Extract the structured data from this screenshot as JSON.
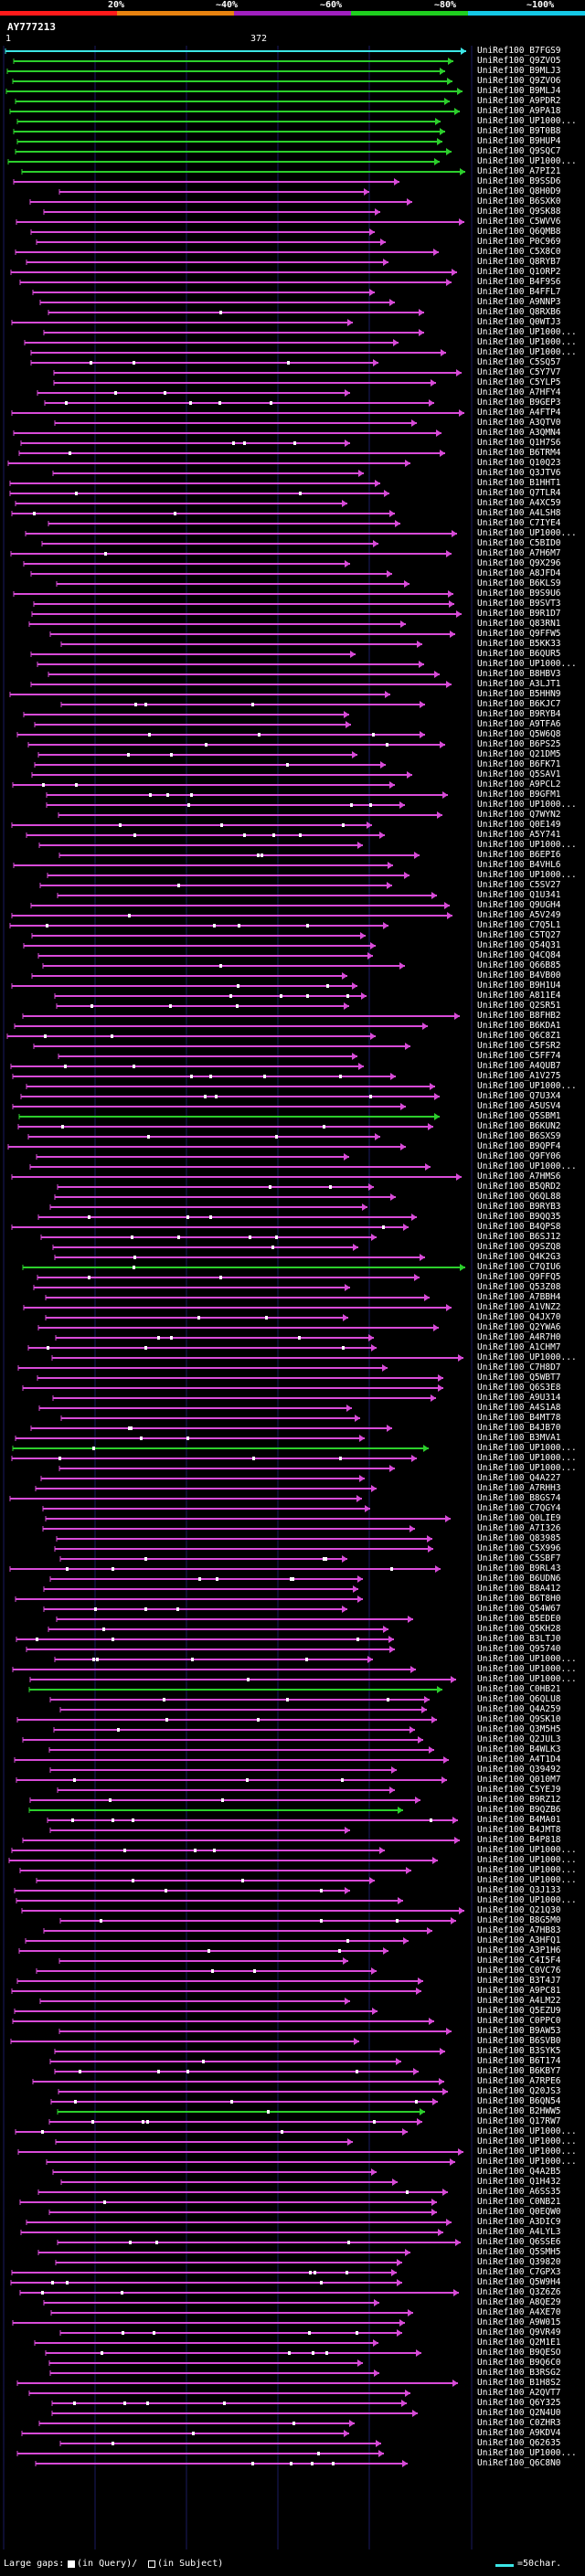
{
  "header": {
    "percent_labels": [
      "20%",
      "~40%",
      "~60%",
      "~80%",
      "~100%"
    ],
    "identity_colors": [
      "#ff1a1a",
      "#e88310",
      "#a020c0",
      "#1fcf1f",
      "#14c8e6"
    ],
    "query_id": "AY777213",
    "query_start": "1",
    "query_end": "372"
  },
  "colors": {
    "magenta": "#d84bd8",
    "green": "#2ccf2c",
    "cyan": "#3ce6e6",
    "gap_query": "#ffffff",
    "gap_subject": "#000000"
  },
  "hits": [
    {
      "label": "UniRef100_B7FGS9",
      "color": "cyan"
    },
    {
      "label": "UniRef100_Q9ZVO5",
      "color": "green"
    },
    {
      "label": "UniRef100_B9MLJ3",
      "color": "green"
    },
    {
      "label": "UniRef100_Q9ZVO6",
      "color": "green"
    },
    {
      "label": "UniRef100_B9MLJ4",
      "color": "green"
    },
    {
      "label": "UniRef100_A9PDR2",
      "color": "green"
    },
    {
      "label": "UniRef100_A9PA18",
      "color": "green"
    },
    {
      "label": "UniRef100_UP1000...",
      "color": "green"
    },
    {
      "label": "UniRef100_B9T0B8",
      "color": "green"
    },
    {
      "label": "UniRef100_B9HUP4",
      "color": "green"
    },
    {
      "label": "UniRef100_Q9SQC7",
      "color": "green"
    },
    {
      "label": "UniRef100_UP1000...",
      "color": "green"
    },
    {
      "label": "UniRef100_A7PI21",
      "color": "green"
    },
    {
      "label": "UniRef100_B9SSD6",
      "color": "magenta"
    },
    {
      "label": "UniRef100_Q8H0D9",
      "color": "magenta"
    },
    {
      "label": "UniRef100_B6SXK0",
      "color": "magenta"
    },
    {
      "label": "UniRef100_Q9SK88",
      "color": "magenta"
    },
    {
      "label": "UniRef100_C5WVV6",
      "color": "magenta"
    },
    {
      "label": "UniRef100_Q6QMB8",
      "color": "magenta"
    },
    {
      "label": "UniRef100_P0C969",
      "color": "magenta"
    },
    {
      "label": "UniRef100_C5X8C0",
      "color": "magenta"
    },
    {
      "label": "UniRef100_Q8RYB7",
      "color": "magenta"
    },
    {
      "label": "UniRef100_Q1ORP2",
      "color": "magenta"
    },
    {
      "label": "UniRef100_B4F9S6",
      "color": "magenta"
    },
    {
      "label": "UniRef100_B4FFL7",
      "color": "magenta"
    },
    {
      "label": "UniRef100_A9NNP3",
      "color": "magenta"
    },
    {
      "label": "UniRef100_Q8RXB6",
      "color": "magenta"
    },
    {
      "label": "UniRef100_Q0WTJ3",
      "color": "magenta"
    },
    {
      "label": "UniRef100_UP1000...",
      "color": "magenta"
    },
    {
      "label": "UniRef100_UP1000...",
      "color": "magenta"
    },
    {
      "label": "UniRef100_UP1000...",
      "color": "magenta"
    },
    {
      "label": "UniRef100_C5SQ57",
      "color": "magenta"
    },
    {
      "label": "UniRef100_C5Y7V7",
      "color": "magenta"
    },
    {
      "label": "UniRef100_C5YLP5",
      "color": "magenta"
    },
    {
      "label": "UniRef100_A7HFY4",
      "color": "magenta"
    },
    {
      "label": "UniRef100_B9GEP3",
      "color": "magenta"
    },
    {
      "label": "UniRef100_A4FTP4",
      "color": "magenta"
    },
    {
      "label": "UniRef100_A3QTV0",
      "color": "magenta"
    },
    {
      "label": "UniRef100_A3QMN4",
      "color": "magenta"
    },
    {
      "label": "UniRef100_Q1H7S6",
      "color": "magenta"
    },
    {
      "label": "UniRef100_B6TRM4",
      "color": "magenta"
    },
    {
      "label": "UniRef100_Q10Q23",
      "color": "magenta"
    },
    {
      "label": "UniRef100_Q3JTV6",
      "color": "magenta"
    },
    {
      "label": "UniRef100_B1HHT1",
      "color": "magenta"
    },
    {
      "label": "UniRef100_Q7TLR4",
      "color": "magenta"
    },
    {
      "label": "UniRef100_A4XC59",
      "color": "magenta"
    },
    {
      "label": "UniRef100_A4LSH8",
      "color": "magenta"
    },
    {
      "label": "UniRef100_C7IYE4",
      "color": "magenta"
    },
    {
      "label": "UniRef100_UP1000...",
      "color": "magenta"
    },
    {
      "label": "UniRef100_C5BID0",
      "color": "magenta"
    },
    {
      "label": "UniRef100_A7H6M7",
      "color": "magenta"
    },
    {
      "label": "UniRef100_Q9X296",
      "color": "magenta"
    },
    {
      "label": "UniRef100_A8JFD4",
      "color": "magenta"
    },
    {
      "label": "UniRef100_B6KLS9",
      "color": "magenta"
    },
    {
      "label": "UniRef100_B9S9U6",
      "color": "magenta"
    },
    {
      "label": "UniRef100_B9SVT3",
      "color": "magenta"
    },
    {
      "label": "UniRef100_B9R1D7",
      "color": "magenta"
    },
    {
      "label": "UniRef100_Q83RN1",
      "color": "magenta"
    },
    {
      "label": "UniRef100_Q9FFW5",
      "color": "magenta"
    },
    {
      "label": "UniRef100_B5KK33",
      "color": "magenta"
    },
    {
      "label": "UniRef100_B6QUR5",
      "color": "magenta"
    },
    {
      "label": "UniRef100_UP1000...",
      "color": "magenta"
    },
    {
      "label": "UniRef100_B8HBV3",
      "color": "magenta"
    },
    {
      "label": "UniRef100_A3LJT1",
      "color": "magenta"
    },
    {
      "label": "UniRef100_B5HHN9",
      "color": "magenta"
    },
    {
      "label": "UniRef100_B6KJC7",
      "color": "magenta"
    },
    {
      "label": "UniRef100_B9RYB4",
      "color": "magenta"
    },
    {
      "label": "UniRef100_A9TFA6",
      "color": "magenta"
    },
    {
      "label": "UniRef100_Q5W6Q8",
      "color": "magenta"
    },
    {
      "label": "UniRef100_B6PS25",
      "color": "magenta"
    },
    {
      "label": "UniRef100_Q21DM5",
      "color": "magenta"
    },
    {
      "label": "UniRef100_B6FK71",
      "color": "magenta"
    },
    {
      "label": "UniRef100_Q5SAV1",
      "color": "magenta"
    },
    {
      "label": "UniRef100_A9PCL2",
      "color": "magenta"
    },
    {
      "label": "UniRef100_B9GFM1",
      "color": "magenta"
    },
    {
      "label": "UniRef100_UP1000...",
      "color": "magenta"
    },
    {
      "label": "UniRef100_Q7WYN2",
      "color": "magenta"
    },
    {
      "label": "UniRef100_Q0E149",
      "color": "magenta"
    },
    {
      "label": "UniRef100_A5Y741",
      "color": "magenta"
    },
    {
      "label": "UniRef100_UP1000...",
      "color": "magenta"
    },
    {
      "label": "UniRef100_B6EPI6",
      "color": "magenta"
    },
    {
      "label": "UniRef100_B4VHL6",
      "color": "magenta"
    },
    {
      "label": "UniRef100_UP1000...",
      "color": "magenta"
    },
    {
      "label": "UniRef100_C5SV27",
      "color": "magenta"
    },
    {
      "label": "UniRef100_Q1U341",
      "color": "magenta"
    },
    {
      "label": "UniRef100_Q9UGH4",
      "color": "magenta"
    },
    {
      "label": "UniRef100_A5V249",
      "color": "magenta"
    },
    {
      "label": "UniRef100_C7Q5L1",
      "color": "magenta"
    },
    {
      "label": "UniRef100_C5TQ27",
      "color": "magenta"
    },
    {
      "label": "UniRef100_Q54Q31",
      "color": "magenta"
    },
    {
      "label": "UniRef100_Q4CQ84",
      "color": "magenta"
    },
    {
      "label": "UniRef100_Q66B85",
      "color": "magenta"
    },
    {
      "label": "UniRef100_B4VB00",
      "color": "magenta"
    },
    {
      "label": "UniRef100_B9H1U4",
      "color": "magenta"
    },
    {
      "label": "UniRef100_A811E4",
      "color": "magenta"
    },
    {
      "label": "UniRef100_Q2SR51",
      "color": "magenta"
    },
    {
      "label": "UniRef100_B8FHB2",
      "color": "magenta"
    },
    {
      "label": "UniRef100_B6KDA1",
      "color": "magenta"
    },
    {
      "label": "UniRef100_Q6C8Z1",
      "color": "magenta"
    },
    {
      "label": "UniRef100_C5FSR2",
      "color": "magenta"
    },
    {
      "label": "UniRef100_C5FF74",
      "color": "magenta"
    },
    {
      "label": "UniRef100_A4QUB7",
      "color": "magenta"
    },
    {
      "label": "UniRef100_A1V275",
      "color": "magenta"
    },
    {
      "label": "UniRef100_UP1000...",
      "color": "magenta"
    },
    {
      "label": "UniRef100_Q7U3X4",
      "color": "magenta"
    },
    {
      "label": "UniRef100_A5USV4",
      "color": "magenta"
    },
    {
      "label": "UniRef100_Q5SBM1",
      "color": "green"
    },
    {
      "label": "UniRef100_B6KUN2",
      "color": "magenta"
    },
    {
      "label": "UniRef100_B6SXS9",
      "color": "magenta"
    },
    {
      "label": "UniRef100_B9QPF4",
      "color": "magenta"
    },
    {
      "label": "UniRef100_Q9FY06",
      "color": "magenta"
    },
    {
      "label": "UniRef100_UP1000...",
      "color": "magenta"
    },
    {
      "label": "UniRef100_A7HMS6",
      "color": "magenta"
    },
    {
      "label": "UniRef100_B5QRD2",
      "color": "magenta"
    },
    {
      "label": "UniRef100_Q6QL88",
      "color": "magenta"
    },
    {
      "label": "UniRef100_B9RYB3",
      "color": "magenta"
    },
    {
      "label": "UniRef100_B9QQ35",
      "color": "magenta"
    },
    {
      "label": "UniRef100_B4QPS8",
      "color": "magenta"
    },
    {
      "label": "UniRef100_B6SJ12",
      "color": "magenta"
    },
    {
      "label": "UniRef100_Q9SZQ8",
      "color": "magenta"
    },
    {
      "label": "UniRef100_Q4K2G3",
      "color": "magenta"
    },
    {
      "label": "UniRef100_C7QIU6",
      "color": "green"
    },
    {
      "label": "UniRef100_Q9FFQ5",
      "color": "magenta"
    },
    {
      "label": "UniRef100_Q53Z08",
      "color": "magenta"
    },
    {
      "label": "UniRef100_A7BBH4",
      "color": "magenta"
    },
    {
      "label": "UniRef100_A1VNZ2",
      "color": "magenta"
    },
    {
      "label": "UniRef100_Q4JX70",
      "color": "magenta"
    },
    {
      "label": "UniRef100_Q2YWA6",
      "color": "magenta"
    },
    {
      "label": "UniRef100_A4R7H0",
      "color": "magenta"
    },
    {
      "label": "UniRef100_A1CHM7",
      "color": "magenta"
    },
    {
      "label": "UniRef100_UP1000...",
      "color": "magenta"
    },
    {
      "label": "UniRef100_C7H8D7",
      "color": "magenta"
    },
    {
      "label": "UniRef100_Q5WBT7",
      "color": "magenta"
    },
    {
      "label": "UniRef100_Q6S3E8",
      "color": "magenta"
    },
    {
      "label": "UniRef100_A9U314",
      "color": "magenta"
    },
    {
      "label": "UniRef100_A4S1A8",
      "color": "magenta"
    },
    {
      "label": "UniRef100_B4MT78",
      "color": "magenta"
    },
    {
      "label": "UniRef100_B4JB70",
      "color": "magenta"
    },
    {
      "label": "UniRef100_B3MVA1",
      "color": "magenta"
    },
    {
      "label": "UniRef100_UP1000...",
      "color": "green"
    },
    {
      "label": "UniRef100_UP1000...",
      "color": "magenta"
    },
    {
      "label": "UniRef100_UP1000...",
      "color": "magenta"
    },
    {
      "label": "UniRef100_Q4A227",
      "color": "magenta"
    },
    {
      "label": "UniRef100_A7RHH3",
      "color": "magenta"
    },
    {
      "label": "UniRef100_B8GS74",
      "color": "magenta"
    },
    {
      "label": "UniRef100_C7QGY4",
      "color": "magenta"
    },
    {
      "label": "UniRef100_Q0LIE9",
      "color": "magenta"
    },
    {
      "label": "UniRef100_A7I326",
      "color": "magenta"
    },
    {
      "label": "UniRef100_Q83985",
      "color": "magenta"
    },
    {
      "label": "UniRef100_C5X996",
      "color": "magenta"
    },
    {
      "label": "UniRef100_C5SBF7",
      "color": "magenta"
    },
    {
      "label": "UniRef100_B9RL43",
      "color": "magenta"
    },
    {
      "label": "UniRef100_B6UDN6",
      "color": "magenta"
    },
    {
      "label": "UniRef100_B8A412",
      "color": "magenta"
    },
    {
      "label": "UniRef100_B6T8H0",
      "color": "magenta"
    },
    {
      "label": "UniRef100_Q54W67",
      "color": "magenta"
    },
    {
      "label": "UniRef100_B5EDE0",
      "color": "magenta"
    },
    {
      "label": "UniRef100_Q5KH28",
      "color": "magenta"
    },
    {
      "label": "UniRef100_B3LTJ0",
      "color": "magenta"
    },
    {
      "label": "UniRef100_Q95740",
      "color": "magenta"
    },
    {
      "label": "UniRef100_UP1000...",
      "color": "magenta"
    },
    {
      "label": "UniRef100_UP1000...",
      "color": "magenta"
    },
    {
      "label": "UniRef100_UP1000...",
      "color": "magenta"
    },
    {
      "label": "UniRef100_C0HB21",
      "color": "green"
    },
    {
      "label": "UniRef100_Q6QLU8",
      "color": "magenta"
    },
    {
      "label": "UniRef100_Q4A259",
      "color": "magenta"
    },
    {
      "label": "UniRef100_Q9SK10",
      "color": "magenta"
    },
    {
      "label": "UniRef100_Q3M5H5",
      "color": "magenta"
    },
    {
      "label": "UniRef100_Q2JUL3",
      "color": "magenta"
    },
    {
      "label": "UniRef100_B4WLK3",
      "color": "magenta"
    },
    {
      "label": "UniRef100_A4T1D4",
      "color": "magenta"
    },
    {
      "label": "UniRef100_Q39492",
      "color": "magenta"
    },
    {
      "label": "UniRef100_Q010M7",
      "color": "magenta"
    },
    {
      "label": "UniRef100_C5YEJ9",
      "color": "magenta"
    },
    {
      "label": "UniRef100_B9RZ12",
      "color": "magenta"
    },
    {
      "label": "UniRef100_B9QZB6",
      "color": "green"
    },
    {
      "label": "UniRef100_B4MA01",
      "color": "magenta"
    },
    {
      "label": "UniRef100_B4JMT8",
      "color": "magenta"
    },
    {
      "label": "UniRef100_B4P818",
      "color": "magenta"
    },
    {
      "label": "UniRef100_UP1000...",
      "color": "magenta"
    },
    {
      "label": "UniRef100_UP1000...",
      "color": "magenta"
    },
    {
      "label": "UniRef100_UP1000...",
      "color": "magenta"
    },
    {
      "label": "UniRef100_UP1000...",
      "color": "magenta"
    },
    {
      "label": "UniRef100_Q3J133",
      "color": "magenta"
    },
    {
      "label": "UniRef100_UP1000...",
      "color": "magenta"
    },
    {
      "label": "UniRef100_Q21Q30",
      "color": "magenta"
    },
    {
      "label": "UniRef100_B8G5M0",
      "color": "magenta"
    },
    {
      "label": "UniRef100_A7HB83",
      "color": "magenta"
    },
    {
      "label": "UniRef100_A3HFQ1",
      "color": "magenta"
    },
    {
      "label": "UniRef100_A3P1H6",
      "color": "magenta"
    },
    {
      "label": "UniRef100_C4I5F4",
      "color": "magenta"
    },
    {
      "label": "UniRef100_C0VC76",
      "color": "magenta"
    },
    {
      "label": "UniRef100_B3T4J7",
      "color": "magenta"
    },
    {
      "label": "UniRef100_A9PC81",
      "color": "magenta"
    },
    {
      "label": "UniRef100_A4LM22",
      "color": "magenta"
    },
    {
      "label": "UniRef100_Q5EZU9",
      "color": "magenta"
    },
    {
      "label": "UniRef100_C0PPC0",
      "color": "magenta"
    },
    {
      "label": "UniRef100_B9AW53",
      "color": "magenta"
    },
    {
      "label": "UniRef100_B6SVB0",
      "color": "magenta"
    },
    {
      "label": "UniRef100_B3SYK5",
      "color": "magenta"
    },
    {
      "label": "UniRef100_B6T174",
      "color": "magenta"
    },
    {
      "label": "UniRef100_B6KBY7",
      "color": "magenta"
    },
    {
      "label": "UniRef100_A7RPE6",
      "color": "magenta"
    },
    {
      "label": "UniRef100_Q20JS3",
      "color": "magenta"
    },
    {
      "label": "UniRef100_B6QN54",
      "color": "magenta"
    },
    {
      "label": "UniRef100_B2HWW5",
      "color": "green"
    },
    {
      "label": "UniRef100_Q17RW7",
      "color": "magenta"
    },
    {
      "label": "UniRef100_UP1000...",
      "color": "magenta"
    },
    {
      "label": "UniRef100_UP1000...",
      "color": "magenta"
    },
    {
      "label": "UniRef100_UP1000...",
      "color": "magenta"
    },
    {
      "label": "UniRef100_UP1000...",
      "color": "magenta"
    },
    {
      "label": "UniRef100_Q4A2B5",
      "color": "magenta"
    },
    {
      "label": "UniRef100_Q1H432",
      "color": "magenta"
    },
    {
      "label": "UniRef100_A6SS35",
      "color": "magenta"
    },
    {
      "label": "UniRef100_C0NB21",
      "color": "magenta"
    },
    {
      "label": "UniRef100_Q0EQW0",
      "color": "magenta"
    },
    {
      "label": "UniRef100_A3DIC9",
      "color": "magenta"
    },
    {
      "label": "UniRef100_A4LYL3",
      "color": "magenta"
    },
    {
      "label": "UniRef100_Q6SSE6",
      "color": "magenta"
    },
    {
      "label": "UniRef100_Q5SMH5",
      "color": "magenta"
    },
    {
      "label": "UniRef100_Q39820",
      "color": "magenta"
    },
    {
      "label": "UniRef100_C7GPX3",
      "color": "magenta"
    },
    {
      "label": "UniRef100_Q5W9H4",
      "color": "magenta"
    },
    {
      "label": "UniRef100_Q3Z6Z6",
      "color": "magenta"
    },
    {
      "label": "UniRef100_A8QE29",
      "color": "magenta"
    },
    {
      "label": "UniRef100_A4XE70",
      "color": "magenta"
    },
    {
      "label": "UniRef100_A9W015",
      "color": "magenta"
    },
    {
      "label": "UniRef100_Q9VR49",
      "color": "magenta"
    },
    {
      "label": "UniRef100_Q2M1E1",
      "color": "magenta"
    },
    {
      "label": "UniRef100_B9QESO",
      "color": "magenta"
    },
    {
      "label": "UniRef100_B9Q6C0",
      "color": "magenta"
    },
    {
      "label": "UniRef100_B3RSG2",
      "color": "magenta"
    },
    {
      "label": "UniRef100_B1H8S2",
      "color": "magenta"
    },
    {
      "label": "UniRef100_A2QVT7",
      "color": "magenta"
    },
    {
      "label": "UniRef100_Q6Y325",
      "color": "magenta"
    },
    {
      "label": "UniRef100_Q2N4U0",
      "color": "magenta"
    },
    {
      "label": "UniRef100_C0ZHR3",
      "color": "magenta"
    },
    {
      "label": "UniRef100_A9KDV4",
      "color": "magenta"
    },
    {
      "label": "UniRef100_Q62635",
      "color": "magenta"
    },
    {
      "label": "UniRef100_UP1000...",
      "color": "magenta"
    },
    {
      "label": "UniRef100_Q6C8N0",
      "color": "magenta"
    }
  ],
  "legend": {
    "large_gaps_prefix": "Large gaps:",
    "in_query_text": "(in Query)/",
    "in_subject_text": "(in Subject)",
    "scale_text": "=50char."
  }
}
